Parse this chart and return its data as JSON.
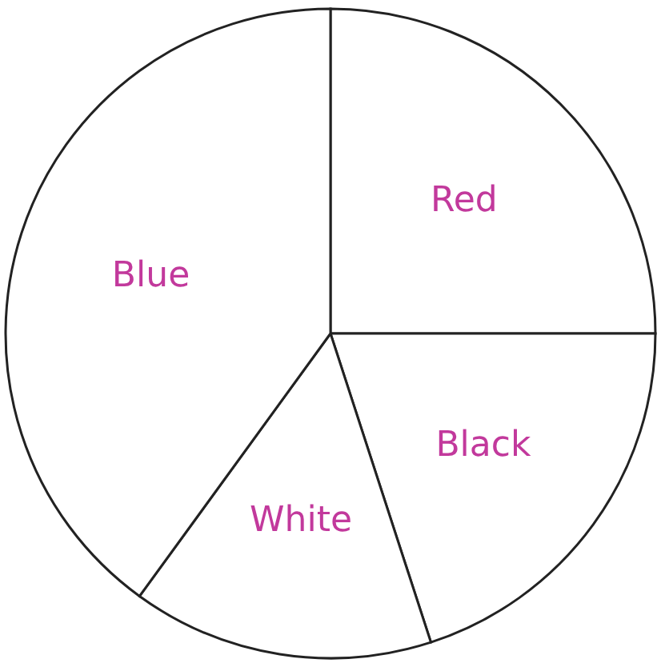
{
  "chart_data": {
    "type": "pie",
    "categories": [
      "Red",
      "Black",
      "White",
      "Blue"
    ],
    "values": [
      25,
      20,
      15,
      40
    ],
    "colors": [
      "#ffffff",
      "#ffffff",
      "#ffffff",
      "#ffffff"
    ]
  }
}
